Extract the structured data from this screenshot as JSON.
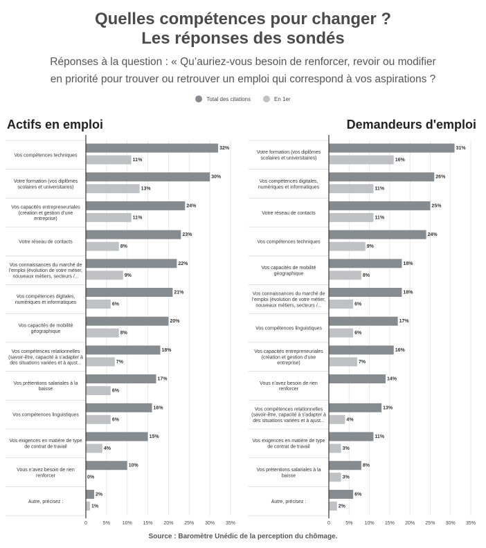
{
  "header": {
    "title_line1": "Quelles compétences pour changer ?",
    "title_line2": "Les réponses des sondés",
    "subtitle_line1": "Réponses à la question : « Qu’auriez-vous besoin de renforcer, revoir ou modifier",
    "subtitle_line2": "en priorité pour trouver ou retrouver un emploi qui correspond à vos aspirations ?"
  },
  "legend": [
    {
      "label": "Total des citations",
      "color": "#868b90"
    },
    {
      "label": "En 1er",
      "color": "#bfc1c5"
    }
  ],
  "source": "Source : Baromètre Unédic de la perception du chômage.",
  "chart_data": [
    {
      "type": "bar",
      "orientation": "horizontal",
      "title": "Actifs en emploi",
      "xlim": [
        0,
        35
      ],
      "xticks": [
        "0",
        "5%",
        "10%",
        "15%",
        "20%",
        "25%",
        "30%",
        "35%"
      ],
      "grid": true,
      "legend_position": "top",
      "categories": [
        [
          "Vos compétences techniques"
        ],
        [
          "Votre formation (vos diplômes",
          "scolaires et universitaires)"
        ],
        [
          "Vos capacités entrepreneuriales",
          "(création et gestion d’une",
          "entreprise)"
        ],
        [
          "Votre réseau de contacts"
        ],
        [
          "Vos connaissances du marché de",
          "l’emploi (évolution de votre métier,",
          "nouveaux métiers, secteurs /..."
        ],
        [
          "Vos compétences digitales,",
          "numériques et informatiques"
        ],
        [
          "Vos capacités de mobilité",
          "géographique"
        ],
        [
          "Vos compétences relationnelles",
          "(savoir-être, capacité à s’adapter à",
          "des situations variées et à ajust..."
        ],
        [
          "Vos prétentions salariales à la",
          "baisse"
        ],
        [
          "Vos compétences linguistiques"
        ],
        [
          "Vos exigences en matière de type",
          "de contrat de travail"
        ],
        [
          "Vous n’avez besoin de rien",
          "renforcer"
        ],
        [
          "Autre, précisez :"
        ]
      ],
      "series": [
        {
          "name": "Total des citations",
          "values": [
            32,
            30,
            24,
            23,
            22,
            21,
            20,
            18,
            17,
            16,
            15,
            10,
            2
          ],
          "labels": [
            "32%",
            "30%",
            "24%",
            "23%",
            "22%",
            "21%",
            "20%",
            "18%",
            "17%",
            "16%",
            "15%",
            "10%",
            "2%"
          ]
        },
        {
          "name": "En 1er",
          "values": [
            11,
            13,
            11,
            8,
            9,
            6,
            8,
            7,
            6,
            6,
            4,
            0,
            1
          ],
          "labels": [
            "11%",
            "13%",
            "11%",
            "8%",
            "9%",
            "6%",
            "8%",
            "7%",
            "6%",
            "6%",
            "4%",
            "0%",
            "1%"
          ]
        }
      ]
    },
    {
      "type": "bar",
      "orientation": "horizontal",
      "title": "Demandeurs d'emploi",
      "xlim": [
        0,
        35
      ],
      "xticks": [
        "0",
        "5%",
        "10%",
        "15%",
        "20%",
        "25%",
        "30%",
        "35%"
      ],
      "grid": true,
      "legend_position": "top",
      "categories": [
        [
          "Votre formation (vos diplômes",
          "scolaires et universitaires)"
        ],
        [
          "Vos compétences digitales,",
          "numériques et informatiques"
        ],
        [
          "Votre réseau de contacts"
        ],
        [
          "Vos compétences techniques"
        ],
        [
          "Vos capacités de mobilité",
          "géographique"
        ],
        [
          "Vos connaissances du marché de",
          "l’emploi (évolution de votre métier,",
          "nouveaux métiers, secteurs /..."
        ],
        [
          "Vos compétences linguistiques"
        ],
        [
          "Vos capacités entrepreneuriales",
          "(création et gestion d’une",
          "entreprise)"
        ],
        [
          "Vous n’avez besoin de rien",
          "renforcer"
        ],
        [
          "Vos compétences relationnelles",
          "(savoir-être, capacité à s’adapter à",
          "des situations variées et à ajust..."
        ],
        [
          "Vos exigences en matière de type",
          "de contrat de travail"
        ],
        [
          "Vos prétentions salariales à la",
          "baisse"
        ],
        [
          "Autre, précisez :"
        ]
      ],
      "series": [
        {
          "name": "Total des citations",
          "values": [
            31,
            26,
            25,
            24,
            18,
            18,
            17,
            16,
            14,
            13,
            11,
            8,
            6
          ],
          "labels": [
            "31%",
            "26%",
            "25%",
            "24%",
            "18%",
            "18%",
            "17%",
            "16%",
            "14%",
            "13%",
            "11%",
            "8%",
            "6%"
          ]
        },
        {
          "name": "En 1er",
          "values": [
            16,
            11,
            11,
            9,
            8,
            6,
            6,
            7,
            null,
            4,
            3,
            3,
            2
          ],
          "labels": [
            "16%",
            "11%",
            "11%",
            "9%",
            "8%",
            "6%",
            "6%",
            "7%",
            "",
            "4%",
            "3%",
            "3%",
            "2%"
          ]
        }
      ]
    }
  ]
}
